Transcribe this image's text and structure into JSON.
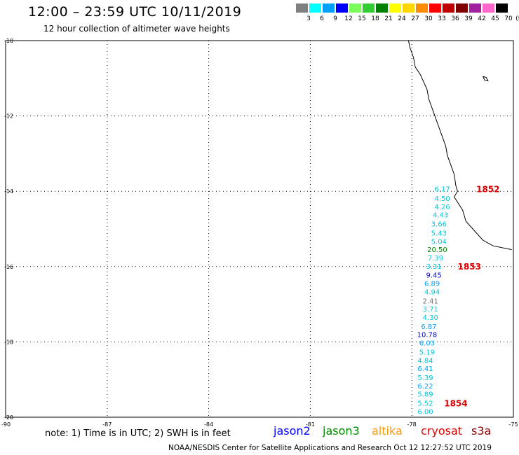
{
  "header": {
    "title": "12:00 – 23:59 UTC 10/11/2019",
    "subtitle": "12 hour collection of altimeter wave heights"
  },
  "scale": {
    "unit_label": "(ft)",
    "bins": [
      {
        "label": "3",
        "color": "#808080"
      },
      {
        "label": "6",
        "color": "#00ffff"
      },
      {
        "label": "9",
        "color": "#00a0ff"
      },
      {
        "label": "12",
        "color": "#0000ff"
      },
      {
        "label": "15",
        "color": "#7cfc5a"
      },
      {
        "label": "18",
        "color": "#32cd32"
      },
      {
        "label": "21",
        "color": "#008000"
      },
      {
        "label": "24",
        "color": "#ffff00"
      },
      {
        "label": "27",
        "color": "#ffd700"
      },
      {
        "label": "30",
        "color": "#ff8c00"
      },
      {
        "label": "33",
        "color": "#ff0000"
      },
      {
        "label": "36",
        "color": "#c00000"
      },
      {
        "label": "39",
        "color": "#800000"
      },
      {
        "label": "42",
        "color": "#a020a0"
      },
      {
        "label": "45",
        "color": "#ff66cc"
      },
      {
        "label": "70",
        "color": "#000000"
      }
    ]
  },
  "axes": {
    "x_ticks": [
      "-90",
      "-87",
      "-84",
      "-81",
      "-78",
      "-75"
    ],
    "y_ticks": [
      "-10",
      "-12",
      "-14",
      "-16",
      "-18",
      "-20"
    ]
  },
  "chart_data": {
    "type": "scatter",
    "title": "12:00 – 23:59 UTC 10/11/2019",
    "subtitle": "12 hour collection of altimeter wave heights",
    "xlabel": "",
    "ylabel": "",
    "xlim": [
      -90,
      -75
    ],
    "ylim": [
      -20,
      -10
    ],
    "grid": true,
    "series": [
      {
        "name": "cryosat",
        "color": "#00d0e0",
        "points": [
          {
            "lon": -77.1,
            "lat": -13.95,
            "value": "6.17",
            "color": "#00c8d8"
          },
          {
            "lon": -77.1,
            "lat": -14.2,
            "value": "4.50",
            "color": "#00c8d8"
          },
          {
            "lon": -77.1,
            "lat": -14.42,
            "value": "4.26",
            "color": "#00c8d8"
          },
          {
            "lon": -77.15,
            "lat": -14.64,
            "value": "4.43",
            "color": "#00c8d8"
          },
          {
            "lon": -77.2,
            "lat": -14.88,
            "value": "3.66",
            "color": "#00c8d8"
          },
          {
            "lon": -77.2,
            "lat": -15.12,
            "value": "5.43",
            "color": "#00c8d8"
          },
          {
            "lon": -77.2,
            "lat": -15.34,
            "value": "5.04",
            "color": "#00c8d8"
          },
          {
            "lon": -77.25,
            "lat": -15.56,
            "value": "20.50",
            "color": "#008000"
          },
          {
            "lon": -77.3,
            "lat": -15.78,
            "value": "7.39",
            "color": "#00c8d8"
          },
          {
            "lon": -77.35,
            "lat": -16.0,
            "value": "3.31",
            "color": "#00c8d8"
          },
          {
            "lon": -77.35,
            "lat": -16.24,
            "value": "9.45",
            "color": "#0000c0"
          },
          {
            "lon": -77.4,
            "lat": -16.46,
            "value": "6.89",
            "color": "#00a0ff"
          },
          {
            "lon": -77.4,
            "lat": -16.68,
            "value": "4.94",
            "color": "#00c8d8"
          },
          {
            "lon": -77.45,
            "lat": -16.92,
            "value": "2.41",
            "color": "#707070"
          },
          {
            "lon": -77.45,
            "lat": -17.14,
            "value": "3.71",
            "color": "#00c8d8"
          },
          {
            "lon": -77.45,
            "lat": -17.36,
            "value": "4.30",
            "color": "#00c8d8"
          },
          {
            "lon": -77.5,
            "lat": -17.6,
            "value": "6.87",
            "color": "#00a0ff"
          },
          {
            "lon": -77.55,
            "lat": -17.82,
            "value": "10.78",
            "color": "#0000c0"
          },
          {
            "lon": -77.55,
            "lat": -18.04,
            "value": "6.03",
            "color": "#00a0ff"
          },
          {
            "lon": -77.55,
            "lat": -18.28,
            "value": "5.19",
            "color": "#00c8d8"
          },
          {
            "lon": -77.6,
            "lat": -18.5,
            "value": "4.84",
            "color": "#00c8d8"
          },
          {
            "lon": -77.6,
            "lat": -18.72,
            "value": "6.41",
            "color": "#00a0ff"
          },
          {
            "lon": -77.6,
            "lat": -18.96,
            "value": "5.39",
            "color": "#00c8d8"
          },
          {
            "lon": -77.6,
            "lat": -19.18,
            "value": "6.22",
            "color": "#00a0ff"
          },
          {
            "lon": -77.6,
            "lat": -19.4,
            "value": "5.89",
            "color": "#00c8d8"
          },
          {
            "lon": -77.6,
            "lat": -19.64,
            "value": "5.52",
            "color": "#00c8d8"
          },
          {
            "lon": -77.6,
            "lat": -19.86,
            "value": "6.00",
            "color": "#00c8d8"
          }
        ]
      }
    ],
    "time_labels": [
      {
        "lon": -75.75,
        "lat": -13.95,
        "text": "1852",
        "color": "#e00000"
      },
      {
        "lon": -76.3,
        "lat": -16.0,
        "text": "1853",
        "color": "#e00000"
      },
      {
        "lon": -76.7,
        "lat": -19.64,
        "text": "1854",
        "color": "#e00000"
      }
    ]
  },
  "coastline": [
    [
      -78.1,
      -10.0
    ],
    [
      -78.05,
      -10.2
    ],
    [
      -77.95,
      -10.45
    ],
    [
      -77.9,
      -10.7
    ],
    [
      -77.75,
      -10.9
    ],
    [
      -77.65,
      -11.1
    ],
    [
      -77.55,
      -11.3
    ],
    [
      -77.5,
      -11.55
    ],
    [
      -77.4,
      -11.8
    ],
    [
      -77.3,
      -12.05
    ],
    [
      -77.2,
      -12.3
    ],
    [
      -77.1,
      -12.55
    ],
    [
      -77.0,
      -12.8
    ],
    [
      -76.95,
      -13.05
    ],
    [
      -76.85,
      -13.3
    ],
    [
      -76.75,
      -13.55
    ],
    [
      -76.7,
      -13.85
    ],
    [
      -76.65,
      -14.0
    ],
    [
      -76.75,
      -14.15
    ],
    [
      -76.5,
      -14.5
    ],
    [
      -76.4,
      -14.8
    ],
    [
      -76.2,
      -15.0
    ],
    [
      -75.9,
      -15.3
    ],
    [
      -75.6,
      -15.45
    ],
    [
      -75.05,
      -15.55
    ]
  ],
  "island": [
    [
      -75.9,
      -10.95
    ],
    [
      -75.85,
      -11.05
    ],
    [
      -75.75,
      -11.07
    ],
    [
      -75.8,
      -10.98
    ],
    [
      -75.9,
      -10.95
    ]
  ],
  "footer": {
    "note": "note:  1) Time is in UTC;  2) SWH is in feet",
    "satellites": [
      {
        "name": "jason2",
        "color": "#0000ff"
      },
      {
        "name": "jason3",
        "color": "#008800"
      },
      {
        "name": "altika",
        "color": "#ff9900"
      },
      {
        "name": "cryosat",
        "color": "#dd0000"
      },
      {
        "name": "s3a",
        "color": "#8b0000"
      }
    ],
    "credit": "NOAA/NESDIS Center for Satellite Applications and Research     Oct 12 12:27:52 UTC 2019"
  }
}
